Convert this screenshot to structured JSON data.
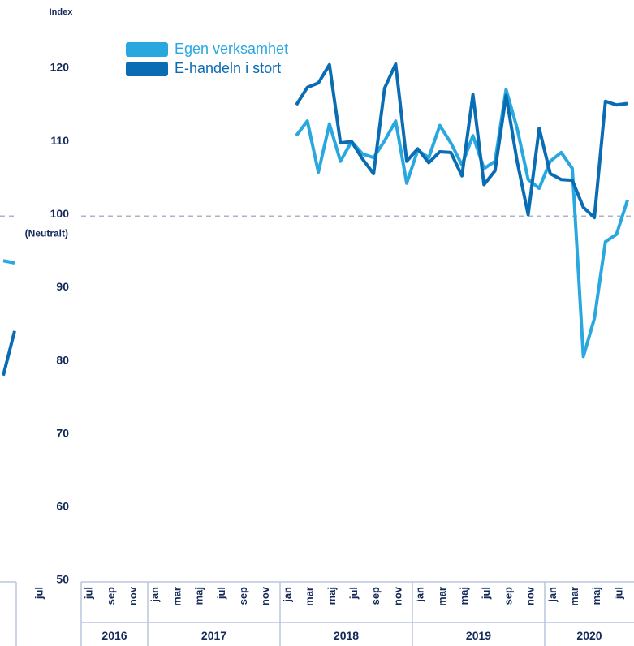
{
  "chart_data": [
    {
      "type": "line",
      "categories": [
        null,
        null,
        "jul"
      ],
      "series": [
        {
          "name": null,
          "color": "#29a8e0",
          "values": [
            93.9,
            93.6,
            null
          ]
        },
        {
          "name": null,
          "color": "#0a6cb3",
          "values": [
            78.2,
            84.3,
            null
          ]
        }
      ],
      "ylim": [
        50,
        120
      ]
    },
    {
      "type": "line",
      "y_label": "Index",
      "reference_line": {
        "value": 100,
        "label": "(Neutralt)"
      },
      "categories": [
        null,
        "jul",
        null,
        "sep",
        null,
        "nov",
        null,
        "jan",
        null,
        "mar",
        null,
        "maj",
        null,
        "jul",
        null,
        "sep",
        null,
        "nov",
        null,
        "jan",
        null,
        "mar",
        null,
        "maj",
        null,
        "jul",
        null,
        "sep",
        null,
        "nov",
        null,
        "jan",
        null,
        "mar",
        null,
        "maj",
        null,
        "jul",
        null,
        "sep",
        null,
        "nov",
        null,
        "jan",
        null,
        "mar",
        null,
        "maj",
        null,
        "jul"
      ],
      "years": [
        "2016",
        "2017",
        "2018",
        "2019",
        "2020"
      ],
      "series": [
        {
          "name": "Egen verksamhet",
          "color": "#29a8e0",
          "values": [
            null,
            null,
            null,
            null,
            null,
            null,
            null,
            null,
            null,
            null,
            null,
            null,
            null,
            null,
            null,
            null,
            null,
            null,
            null,
            111,
            113,
            106,
            112.6,
            107.5,
            110.2,
            108.5,
            108,
            110.3,
            113,
            104.5,
            109,
            108,
            112.4,
            110,
            107,
            111,
            106.5,
            107.5,
            117.3,
            112,
            105,
            103.8,
            107.5,
            108.7,
            106.5,
            80.8,
            86,
            96.5,
            97.5,
            102.2
          ]
        },
        {
          "name": "E-handeln i stort",
          "color": "#0a6cb3",
          "values": [
            null,
            null,
            null,
            null,
            null,
            null,
            null,
            null,
            null,
            null,
            null,
            null,
            null,
            null,
            null,
            null,
            null,
            null,
            null,
            115.2,
            117.6,
            118.2,
            120.7,
            110,
            110.2,
            107.8,
            105.8,
            117.5,
            120.8,
            107.5,
            109.2,
            107.3,
            108.8,
            108.7,
            105.5,
            116.6,
            104.3,
            106.2,
            116.5,
            107.5,
            100.2,
            112,
            105.8,
            105,
            104.9,
            101.2,
            99.8,
            115.7,
            115.2,
            115.4
          ]
        }
      ],
      "ylim": [
        50,
        120
      ],
      "yticks": [
        50,
        60,
        70,
        80,
        90,
        100,
        110,
        120
      ],
      "legend": "upper left"
    }
  ]
}
